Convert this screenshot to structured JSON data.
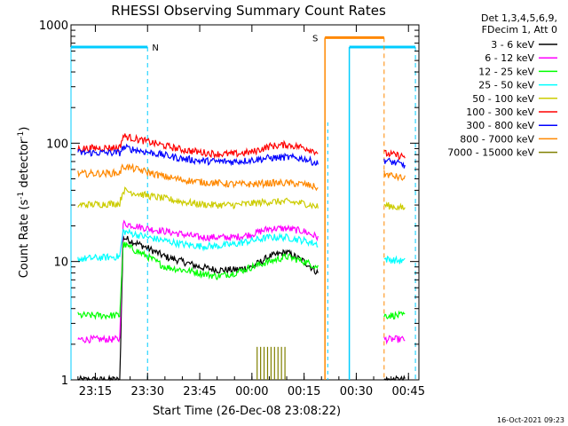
{
  "chart_data": {
    "type": "line",
    "title": "RHESSI Observing Summary Count Rates",
    "xlabel": "Start Time (26-Dec-08 23:08:22)",
    "ylabel": "Count Rate (s",
    "ylabel_sup": "-1",
    "ylabel_tail": " detector",
    "ylabel_tail_sup": "-1",
    "ylabel_close": ")",
    "yscale": "log",
    "ylim": [
      1,
      1000
    ],
    "xlim_minutes": [
      -52,
      48
    ],
    "x_ticks": [
      {
        "value": -45,
        "label": "23:15"
      },
      {
        "value": -30,
        "label": "23:30"
      },
      {
        "value": -15,
        "label": "23:45"
      },
      {
        "value": 0,
        "label": "00:00"
      },
      {
        "value": 15,
        "label": "00:15"
      },
      {
        "value": 30,
        "label": "00:30"
      },
      {
        "value": 45,
        "label": "00:45"
      }
    ],
    "y_ticks": [
      {
        "value": 1,
        "label": "1"
      },
      {
        "value": 10,
        "label": "10"
      },
      {
        "value": 100,
        "label": "100"
      },
      {
        "value": 1000,
        "label": "1000"
      }
    ],
    "legend_title": [
      "Det 1,3,4,5,6,9,",
      "FDecim 1, Att 0"
    ],
    "legend_position": "right",
    "series": [
      {
        "name": "3 - 6 keV",
        "color": "#000000",
        "x": [
          -50,
          -38,
          -37,
          -30,
          -25,
          -20,
          -15,
          -10,
          -5,
          0,
          5,
          10,
          15,
          19,
          38,
          44
        ],
        "y": [
          1,
          1,
          16,
          13,
          11,
          10,
          9,
          8.5,
          8.5,
          9,
          11,
          12,
          10,
          8,
          1,
          1
        ]
      },
      {
        "name": "6 - 12 keV",
        "color": "#ff00ff",
        "x": [
          -50,
          -38,
          -37,
          -30,
          -25,
          -20,
          -15,
          -10,
          -5,
          0,
          5,
          10,
          15,
          19,
          38,
          44
        ],
        "y": [
          2.2,
          2.2,
          21,
          19,
          18,
          17,
          16,
          16,
          16,
          17,
          19,
          19,
          18,
          16,
          2.2,
          2.2
        ]
      },
      {
        "name": "12 - 25 keV",
        "color": "#00ff00",
        "x": [
          -50,
          -38,
          -37,
          -30,
          -25,
          -20,
          -15,
          -10,
          -5,
          0,
          5,
          10,
          15,
          19,
          38,
          44
        ],
        "y": [
          3.5,
          3.5,
          14,
          11,
          9,
          8.5,
          8,
          7.5,
          8,
          9,
          10,
          11,
          10,
          9,
          3.5,
          3.5
        ]
      },
      {
        "name": "25 - 50 keV",
        "color": "#00ffff",
        "x": [
          -50,
          -38,
          -37,
          -30,
          -25,
          -20,
          -15,
          -10,
          -5,
          0,
          5,
          10,
          15,
          19,
          38,
          44
        ],
        "y": [
          10.5,
          11,
          18,
          16,
          15,
          14,
          13.5,
          13.5,
          14,
          15,
          16,
          16,
          15,
          14,
          10.5,
          10
        ]
      },
      {
        "name": "50 - 100 keV",
        "color": "#cccc00",
        "x": [
          -50,
          -38,
          -37,
          -30,
          -25,
          -20,
          -15,
          -10,
          -5,
          0,
          5,
          10,
          15,
          19,
          38,
          44
        ],
        "y": [
          30,
          31,
          40,
          36,
          34,
          32,
          30.5,
          30,
          30,
          31,
          32,
          32,
          31,
          29,
          30,
          28
        ]
      },
      {
        "name": "100 - 300 keV",
        "color": "#ff0000",
        "x": [
          -50,
          -38,
          -37,
          -30,
          -25,
          -20,
          -15,
          -10,
          -5,
          0,
          5,
          10,
          15,
          19,
          38,
          44
        ],
        "y": [
          90,
          92,
          115,
          103,
          95,
          88,
          84,
          81,
          81,
          84,
          94,
          97,
          92,
          84,
          82,
          77
        ]
      },
      {
        "name": "300 - 800 keV",
        "color": "#0000ff",
        "x": [
          -50,
          -38,
          -37,
          -30,
          -25,
          -20,
          -15,
          -10,
          -5,
          0,
          5,
          10,
          15,
          19,
          38,
          44
        ],
        "y": [
          83,
          83,
          92,
          84,
          79,
          74,
          71,
          70,
          70,
          72,
          75,
          76,
          74,
          67,
          72,
          65
        ]
      },
      {
        "name": "800 - 7000 keV",
        "color": "#ff8800",
        "x": [
          -50,
          -38,
          -37,
          -30,
          -25,
          -20,
          -15,
          -10,
          -5,
          0,
          5,
          10,
          15,
          19,
          38,
          44
        ],
        "y": [
          55,
          56,
          64,
          57,
          52,
          49,
          47,
          46,
          45,
          45,
          46,
          46,
          45,
          42,
          55,
          50
        ]
      },
      {
        "name": "7000 - 15000 keV",
        "color": "#808000",
        "x": [
          1.5,
          2.5,
          3.5,
          4.5,
          5.5,
          6.5,
          7.5,
          8.5,
          9.5
        ],
        "y": [
          1.9,
          1.9,
          1.9,
          1.9,
          1.9,
          1.9,
          1.9,
          1.9,
          1.9
        ]
      }
    ],
    "annotations": [
      {
        "label": "N",
        "color": "#00ccff"
      },
      {
        "label": "S",
        "color": "#ff8800"
      }
    ],
    "timestamp": "16-Oct-2021 09:23"
  }
}
